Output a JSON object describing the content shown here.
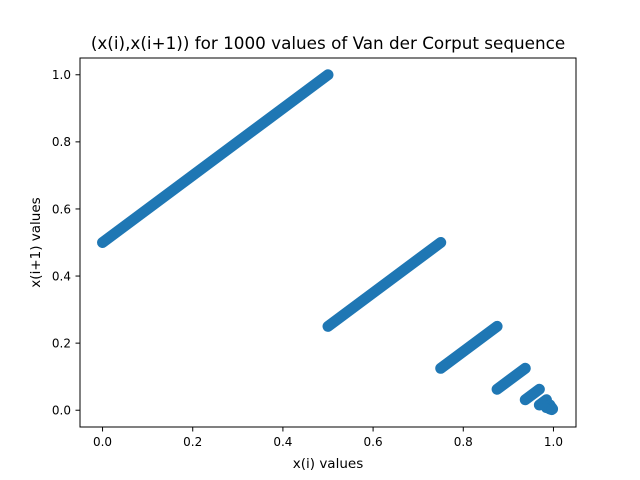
{
  "chart_data": {
    "type": "scatter",
    "title": "(x(i),x(i+1)) for 1000 values of Van der Corput sequence",
    "xlabel": "x(i) values",
    "ylabel": "x(i+1) values",
    "xlim": [
      -0.05,
      1.05
    ],
    "ylim": [
      -0.05,
      1.05
    ],
    "xticks": [
      "0.0",
      "0.2",
      "0.4",
      "0.6",
      "0.8",
      "1.0"
    ],
    "yticks": [
      "0.0",
      "0.2",
      "0.4",
      "0.6",
      "0.8",
      "1.0"
    ],
    "grid": false,
    "legend": "none",
    "color": "#1f77b4",
    "segments": [
      {
        "x": [
          0.0,
          0.5
        ],
        "y": [
          0.5,
          1.0
        ]
      },
      {
        "x": [
          0.5,
          0.75
        ],
        "y": [
          0.25,
          0.5
        ]
      },
      {
        "x": [
          0.75,
          0.875
        ],
        "y": [
          0.125,
          0.25
        ]
      },
      {
        "x": [
          0.875,
          0.9375
        ],
        "y": [
          0.0625,
          0.125
        ]
      },
      {
        "x": [
          0.9375,
          0.96875
        ],
        "y": [
          0.03125,
          0.0625
        ]
      },
      {
        "x": [
          0.96875,
          0.984375
        ],
        "y": [
          0.015625,
          0.03125
        ]
      },
      {
        "x": [
          0.984375,
          0.9921875
        ],
        "y": [
          0.0078125,
          0.015625
        ]
      },
      {
        "x": [
          0.9921875,
          0.99609375
        ],
        "y": [
          0.00390625,
          0.0078125
        ]
      },
      {
        "x": [
          0.99609375,
          0.998046875
        ],
        "y": [
          0.001953125,
          0.00390625
        ]
      }
    ]
  }
}
